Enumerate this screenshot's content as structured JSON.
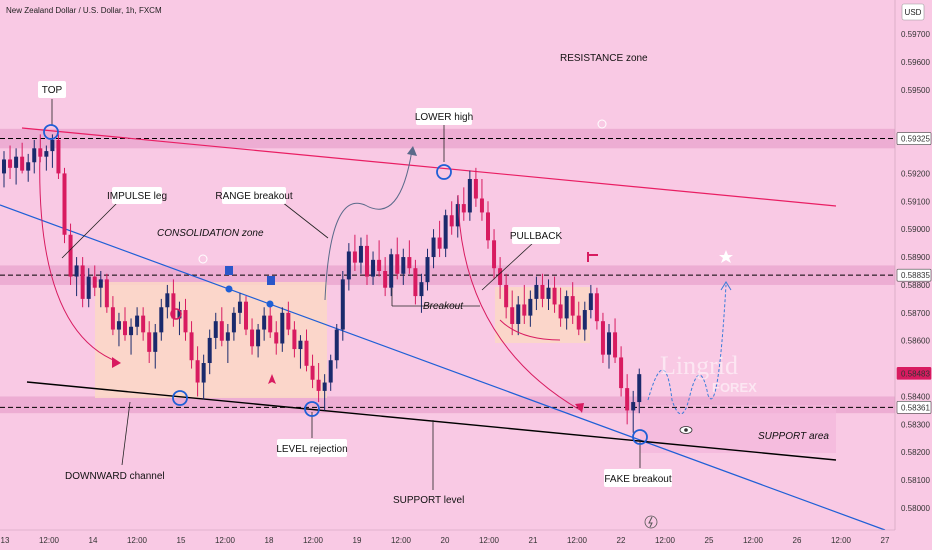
{
  "header": {
    "symbol": "New Zealand Dollar / U.S. Dollar, 1h, FXCM",
    "currency": "USD"
  },
  "watermark": {
    "line1": "Lingrid",
    "line2": "FOREX"
  },
  "colors": {
    "background": "#f9c9e4",
    "bull": "#1a2a6c",
    "bear": "#d81b60",
    "channel_line": "#1f5fd6",
    "resistance_line": "#e91e63",
    "support_line": "#000000",
    "zone": "#e8a3cd",
    "consolidation_box": "#fbd8c6",
    "label_bg": "#ffffff",
    "price_tag_red": "#d81b60"
  },
  "chart_data": {
    "type": "candlestick",
    "title": "",
    "ylim": [
      0.58,
      0.5983
    ],
    "y_ticks": [
      "0.59700",
      "0.59600",
      "0.59500",
      "0.59325",
      "0.59200",
      "0.59100",
      "0.59000",
      "0.58900",
      "0.58835",
      "0.58800",
      "0.58700",
      "0.58600",
      "0.58483",
      "0.58400",
      "0.58361",
      "0.58300",
      "0.58200",
      "0.58100",
      "0.58000"
    ],
    "highlighted_prices": [
      {
        "value": "0.59325",
        "style": "gray"
      },
      {
        "value": "0.58835",
        "style": "gray"
      },
      {
        "value": "0.58483",
        "style": "red"
      },
      {
        "value": "0.58361",
        "style": "gray"
      }
    ],
    "x_ticks": [
      "13",
      "12:00",
      "14",
      "12:00",
      "15",
      "12:00",
      "18",
      "12:00",
      "19",
      "12:00",
      "20",
      "12:00",
      "21",
      "12:00",
      "22",
      "12:00",
      "25",
      "12:00",
      "26",
      "12:00",
      "27"
    ],
    "horizontal_levels": [
      0.59325,
      0.58835,
      0.58361
    ],
    "zones": [
      {
        "name": "resistance",
        "from": 0.5929,
        "to": 0.5936
      },
      {
        "name": "middle",
        "from": 0.588,
        "to": 0.5887
      },
      {
        "name": "support",
        "from": 0.5834,
        "to": 0.584
      }
    ],
    "candles": [
      [
        0,
        0.592,
        0.5928,
        0.5915,
        0.5925
      ],
      [
        1,
        0.5925,
        0.593,
        0.5918,
        0.5922
      ],
      [
        2,
        0.5922,
        0.5929,
        0.5916,
        0.5926
      ],
      [
        3,
        0.5926,
        0.5931,
        0.592,
        0.5921
      ],
      [
        4,
        0.5921,
        0.5927,
        0.5917,
        0.5924
      ],
      [
        5,
        0.5924,
        0.5932,
        0.592,
        0.5929
      ],
      [
        6,
        0.5929,
        0.5934,
        0.5924,
        0.5926
      ],
      [
        7,
        0.5926,
        0.593,
        0.5921,
        0.5928
      ],
      [
        8,
        0.5928,
        0.5934,
        0.5922,
        0.5932
      ],
      [
        9,
        0.5932,
        0.5934,
        0.5918,
        0.592
      ],
      [
        10,
        0.592,
        0.5922,
        0.5895,
        0.5898
      ],
      [
        11,
        0.5898,
        0.5902,
        0.588,
        0.5883
      ],
      [
        12,
        0.5883,
        0.589,
        0.5876,
        0.5887
      ],
      [
        13,
        0.5887,
        0.589,
        0.5872,
        0.5875
      ],
      [
        14,
        0.5875,
        0.5886,
        0.5872,
        0.5883
      ],
      [
        15,
        0.5883,
        0.5887,
        0.5876,
        0.5879
      ],
      [
        16,
        0.5879,
        0.5885,
        0.5872,
        0.5882
      ],
      [
        17,
        0.5882,
        0.5884,
        0.587,
        0.5872
      ],
      [
        18,
        0.5872,
        0.5876,
        0.5862,
        0.5864
      ],
      [
        19,
        0.5864,
        0.587,
        0.5858,
        0.5867
      ],
      [
        20,
        0.5867,
        0.5872,
        0.586,
        0.5862
      ],
      [
        21,
        0.5862,
        0.5868,
        0.5855,
        0.5865
      ],
      [
        22,
        0.5865,
        0.5872,
        0.5862,
        0.5869
      ],
      [
        23,
        0.5869,
        0.5872,
        0.586,
        0.5863
      ],
      [
        24,
        0.5863,
        0.5867,
        0.5852,
        0.5856
      ],
      [
        25,
        0.5856,
        0.5866,
        0.585,
        0.5863
      ],
      [
        26,
        0.5863,
        0.5875,
        0.586,
        0.5872
      ],
      [
        27,
        0.5872,
        0.588,
        0.5868,
        0.5877
      ],
      [
        28,
        0.5877,
        0.5882,
        0.5865,
        0.5868
      ],
      [
        29,
        0.5868,
        0.5874,
        0.5862,
        0.5871
      ],
      [
        30,
        0.5871,
        0.5875,
        0.586,
        0.5863
      ],
      [
        31,
        0.5863,
        0.5867,
        0.585,
        0.5853
      ],
      [
        32,
        0.5853,
        0.5858,
        0.584,
        0.5845
      ],
      [
        33,
        0.5845,
        0.5855,
        0.5839,
        0.5852
      ],
      [
        34,
        0.5852,
        0.5864,
        0.5848,
        0.5861
      ],
      [
        35,
        0.5861,
        0.587,
        0.5857,
        0.5867
      ],
      [
        36,
        0.5867,
        0.5872,
        0.5858,
        0.586
      ],
      [
        37,
        0.586,
        0.5866,
        0.5852,
        0.5863
      ],
      [
        38,
        0.5863,
        0.5872,
        0.586,
        0.587
      ],
      [
        39,
        0.587,
        0.5877,
        0.5866,
        0.5874
      ],
      [
        40,
        0.5874,
        0.5876,
        0.5862,
        0.5864
      ],
      [
        41,
        0.5864,
        0.5868,
        0.5855,
        0.5858
      ],
      [
        42,
        0.5858,
        0.5866,
        0.5854,
        0.5864
      ],
      [
        43,
        0.5864,
        0.5872,
        0.586,
        0.5869
      ],
      [
        44,
        0.5869,
        0.5873,
        0.5861,
        0.5863
      ],
      [
        45,
        0.5863,
        0.5867,
        0.5855,
        0.5859
      ],
      [
        46,
        0.5859,
        0.5872,
        0.5856,
        0.587
      ],
      [
        47,
        0.587,
        0.5874,
        0.5862,
        0.5864
      ],
      [
        48,
        0.5864,
        0.5867,
        0.5854,
        0.5857
      ],
      [
        49,
        0.5857,
        0.5862,
        0.585,
        0.586
      ],
      [
        50,
        0.586,
        0.5864,
        0.5849,
        0.5851
      ],
      [
        51,
        0.5851,
        0.5855,
        0.5843,
        0.5846
      ],
      [
        52,
        0.5846,
        0.5852,
        0.5838,
        0.5842
      ],
      [
        53,
        0.5842,
        0.5848,
        0.5835,
        0.5845
      ],
      [
        54,
        0.5845,
        0.5855,
        0.5842,
        0.5853
      ],
      [
        55,
        0.5853,
        0.5866,
        0.585,
        0.5864
      ],
      [
        56,
        0.5864,
        0.5885,
        0.586,
        0.5882
      ],
      [
        57,
        0.5882,
        0.5895,
        0.5878,
        0.5892
      ],
      [
        58,
        0.5892,
        0.5898,
        0.5885,
        0.5888
      ],
      [
        59,
        0.5888,
        0.5897,
        0.5884,
        0.5894
      ],
      [
        60,
        0.5894,
        0.5898,
        0.588,
        0.5883
      ],
      [
        61,
        0.5883,
        0.5892,
        0.588,
        0.5889
      ],
      [
        62,
        0.5889,
        0.5896,
        0.5883,
        0.5885
      ],
      [
        63,
        0.5885,
        0.589,
        0.5876,
        0.5879
      ],
      [
        64,
        0.5879,
        0.5893,
        0.5876,
        0.5891
      ],
      [
        65,
        0.5891,
        0.5897,
        0.5882,
        0.5884
      ],
      [
        66,
        0.5884,
        0.5893,
        0.588,
        0.589
      ],
      [
        67,
        0.589,
        0.5896,
        0.5884,
        0.5886
      ],
      [
        68,
        0.5886,
        0.5889,
        0.5873,
        0.5876
      ],
      [
        69,
        0.5876,
        0.5884,
        0.587,
        0.5881
      ],
      [
        70,
        0.5881,
        0.5893,
        0.5878,
        0.589
      ],
      [
        71,
        0.589,
        0.59,
        0.5886,
        0.5897
      ],
      [
        72,
        0.5897,
        0.5903,
        0.589,
        0.5893
      ],
      [
        73,
        0.5893,
        0.5907,
        0.589,
        0.5905
      ],
      [
        74,
        0.5905,
        0.591,
        0.5898,
        0.5901
      ],
      [
        75,
        0.5901,
        0.5912,
        0.5897,
        0.5909
      ],
      [
        76,
        0.5909,
        0.5915,
        0.5903,
        0.5906
      ],
      [
        77,
        0.5906,
        0.5921,
        0.5903,
        0.5918
      ],
      [
        78,
        0.5918,
        0.5922,
        0.5908,
        0.5911
      ],
      [
        79,
        0.5911,
        0.5918,
        0.5903,
        0.5906
      ],
      [
        80,
        0.5906,
        0.591,
        0.5893,
        0.5896
      ],
      [
        81,
        0.5896,
        0.59,
        0.5882,
        0.5886
      ],
      [
        82,
        0.5886,
        0.589,
        0.5875,
        0.588
      ],
      [
        83,
        0.588,
        0.5884,
        0.5868,
        0.5872
      ],
      [
        84,
        0.5872,
        0.5878,
        0.5862,
        0.5866
      ],
      [
        85,
        0.5866,
        0.5876,
        0.5862,
        0.5873
      ],
      [
        86,
        0.5873,
        0.588,
        0.5866,
        0.5869
      ],
      [
        87,
        0.5869,
        0.5878,
        0.5865,
        0.5875
      ],
      [
        88,
        0.5875,
        0.5883,
        0.5871,
        0.588
      ],
      [
        89,
        0.588,
        0.5884,
        0.5872,
        0.5875
      ],
      [
        90,
        0.5875,
        0.5882,
        0.5871,
        0.5879
      ],
      [
        91,
        0.5879,
        0.5883,
        0.587,
        0.5873
      ],
      [
        92,
        0.5873,
        0.5879,
        0.5865,
        0.5868
      ],
      [
        93,
        0.5868,
        0.5878,
        0.5864,
        0.5876
      ],
      [
        94,
        0.5876,
        0.5881,
        0.5866,
        0.5869
      ],
      [
        95,
        0.5869,
        0.5874,
        0.5862,
        0.5864
      ],
      [
        96,
        0.5864,
        0.5874,
        0.586,
        0.5871
      ],
      [
        97,
        0.5871,
        0.588,
        0.5868,
        0.5877
      ],
      [
        98,
        0.5877,
        0.5879,
        0.5864,
        0.5867
      ],
      [
        99,
        0.5867,
        0.587,
        0.5852,
        0.5855
      ],
      [
        100,
        0.5855,
        0.5866,
        0.585,
        0.5863
      ],
      [
        101,
        0.5863,
        0.5868,
        0.5852,
        0.5854
      ],
      [
        102,
        0.5854,
        0.5858,
        0.584,
        0.5843
      ],
      [
        103,
        0.5843,
        0.5848,
        0.583,
        0.5835
      ],
      [
        104,
        0.5835,
        0.5842,
        0.5827,
        0.5838
      ],
      [
        105,
        0.5838,
        0.585,
        0.5834,
        0.5848
      ]
    ]
  },
  "annotations": {
    "top": "TOP",
    "lower_high": "LOWER high",
    "resistance_zone": "RESISTANCE zone",
    "impulse_leg": "IMPULSE leg",
    "range_breakout": "RANGE breakout",
    "consolidation_zone": "CONSOLIDATION zone",
    "pullback": "PULLBACK",
    "breakout": "Breakout",
    "downward_channel": "DOWNWARD channel",
    "level_rejection": "LEVEL rejection",
    "support_level": "SUPPORT level",
    "fake_breakout": "FAKE breakout",
    "support_area": "SUPPORT area"
  }
}
